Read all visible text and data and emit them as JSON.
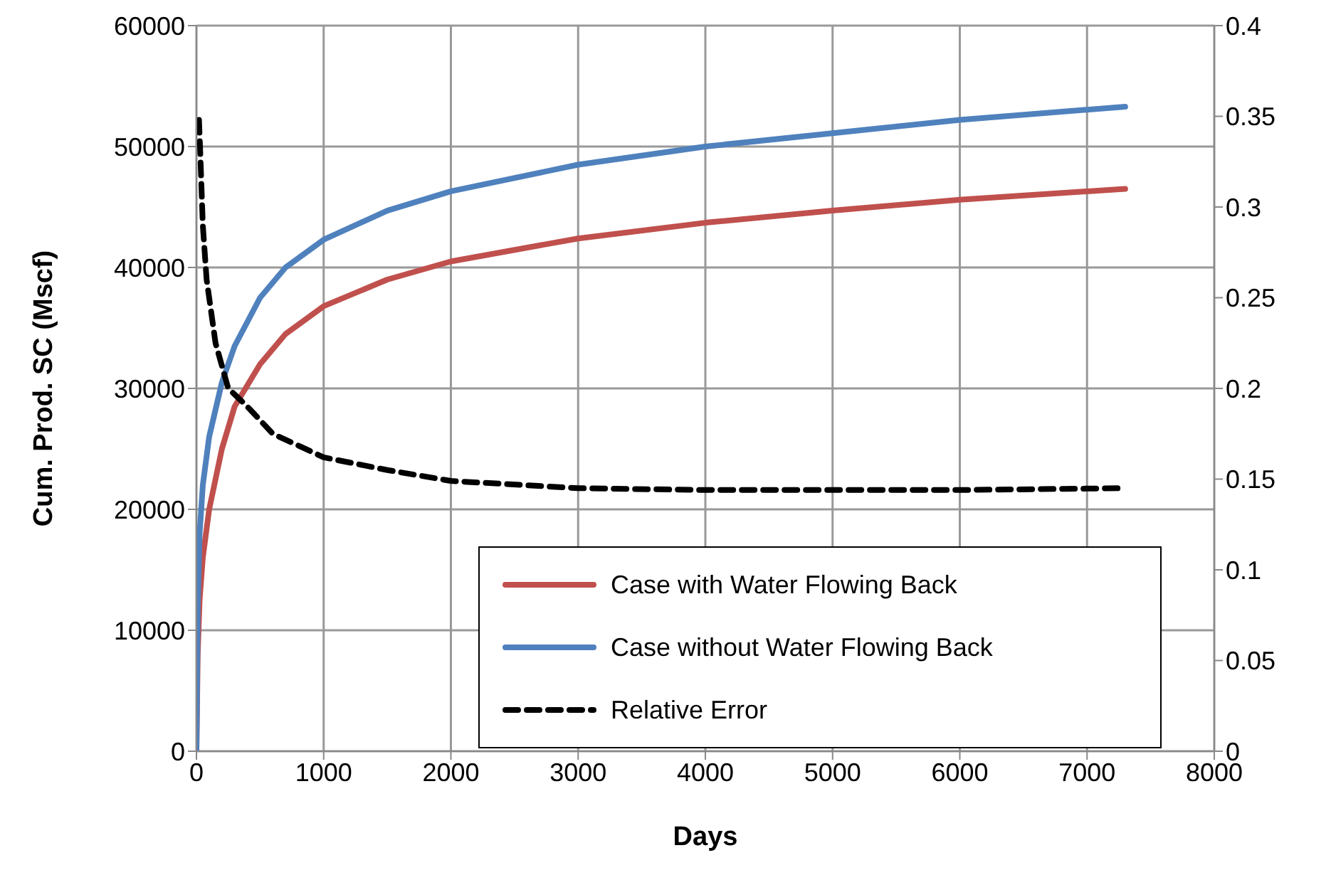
{
  "chart_data": {
    "type": "line",
    "xlabel": "Days",
    "ylabel": "Cum. Prod. SC (Mscf)",
    "xlim": [
      0,
      8000
    ],
    "xticks": [
      0,
      1000,
      2000,
      3000,
      4000,
      5000,
      6000,
      7000,
      8000
    ],
    "ylim": [
      0,
      60000
    ],
    "yticks": [
      0,
      10000,
      20000,
      30000,
      40000,
      50000,
      60000
    ],
    "y2lim": [
      0,
      0.4
    ],
    "y2ticks": [
      0,
      0.05,
      0.1,
      0.15,
      0.2,
      0.25,
      0.3,
      0.35,
      0.4
    ],
    "grid": true,
    "legend": "bottom right",
    "marker": "none",
    "series": [
      {
        "name": "Case with Water Flowing Back",
        "color": "#c0504d",
        "line_style": "solid",
        "x": [
          0,
          10,
          25,
          50,
          100,
          200,
          300,
          500,
          700,
          1000,
          1500,
          2000,
          3000,
          4000,
          5000,
          6000,
          7300
        ],
        "values": [
          0,
          8000,
          12500,
          16000,
          20000,
          25000,
          28500,
          32000,
          34500,
          36800,
          39000,
          40500,
          42400,
          43700,
          44700,
          45600,
          46500
        ]
      },
      {
        "name": "Case without Water Flowing Back",
        "color": "#4f81bd",
        "line_style": "solid",
        "x": [
          0,
          10,
          25,
          50,
          100,
          200,
          300,
          500,
          700,
          1000,
          1500,
          2000,
          3000,
          4000,
          5000,
          6000,
          7300
        ],
        "values": [
          0,
          12000,
          18000,
          22000,
          26000,
          30500,
          33500,
          37500,
          40000,
          42300,
          44700,
          46300,
          48500,
          50000,
          51100,
          52200,
          53300
        ]
      },
      {
        "name": "Relative Error",
        "color": "#000000",
        "line_style": "dashed",
        "axis": "y2",
        "x": [
          20,
          30,
          50,
          80,
          150,
          250,
          400,
          600,
          1000,
          1500,
          2000,
          3000,
          4000,
          5000,
          6000,
          7300
        ],
        "values": [
          0.348,
          0.33,
          0.29,
          0.26,
          0.225,
          0.2,
          0.19,
          0.175,
          0.162,
          0.155,
          0.149,
          0.145,
          0.144,
          0.144,
          0.144,
          0.145
        ]
      }
    ]
  }
}
